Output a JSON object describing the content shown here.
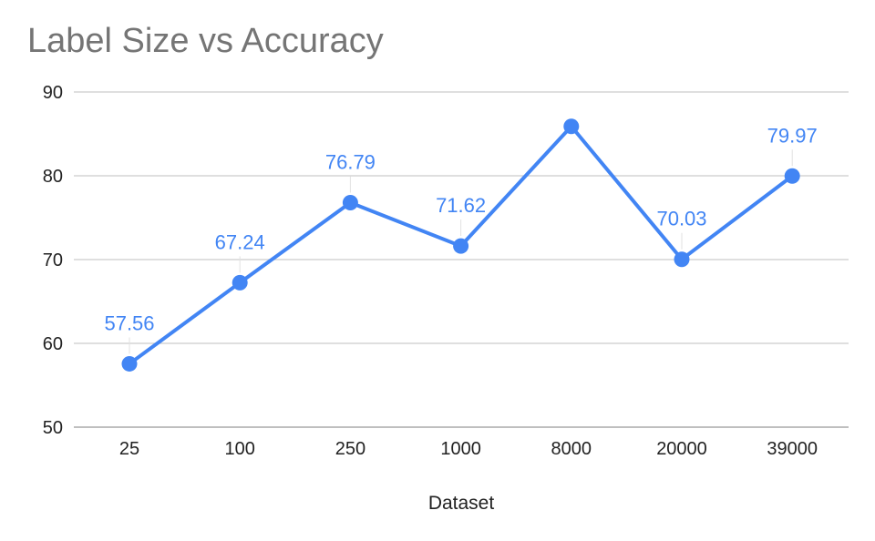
{
  "chart_data": {
    "type": "line",
    "title": "Label Size vs Accuracy",
    "xlabel": "Dataset",
    "ylabel": "",
    "categories": [
      "25",
      "100",
      "250",
      "1000",
      "8000",
      "20000",
      "39000"
    ],
    "series": [
      {
        "values": [
          57.56,
          67.24,
          76.79,
          71.62,
          85.9,
          70.03,
          79.97
        ],
        "data_labels": [
          "57.56",
          "67.24",
          "76.79",
          "71.62",
          "",
          "70.03",
          "79.97"
        ]
      }
    ],
    "ylim": [
      50,
      90
    ],
    "yticks": [
      50,
      60,
      70,
      80,
      90
    ],
    "grid": true,
    "legend": "none",
    "colors": {
      "series": "#4285f4",
      "grid": "#cccccc",
      "baseline": "#999999",
      "title": "#757575"
    }
  }
}
